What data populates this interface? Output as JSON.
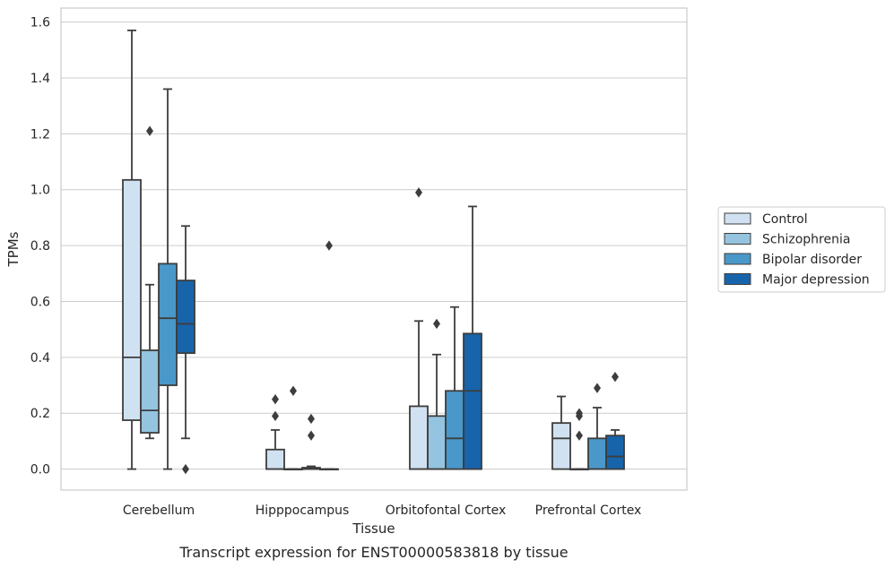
{
  "chart_data": {
    "type": "box",
    "title": "",
    "caption": "Transcript expression for ENST00000583818 by tissue",
    "xlabel": "Tissue",
    "ylabel": "TPMs",
    "ylim": [
      -0.075,
      1.65
    ],
    "yticks": [
      0.0,
      0.2,
      0.4,
      0.6,
      0.8,
      1.0,
      1.2,
      1.4,
      1.6
    ],
    "ytick_labels": [
      "0.0",
      "0.2",
      "0.4",
      "0.6",
      "0.8",
      "1.0",
      "1.2",
      "1.4",
      "1.6"
    ],
    "grid": "horizontal",
    "legend_position": "right",
    "categories": [
      "Cerebellum",
      "Hipppocampus",
      "Orbitofontal Cortex",
      "Prefrontal Cortex"
    ],
    "series": [
      {
        "name": "Control",
        "color": "#d0e1f2",
        "boxes": [
          {
            "whisker_low": 0.0,
            "q1": 0.175,
            "median": 0.4,
            "q3": 1.035,
            "whisker_high": 1.57,
            "outliers": []
          },
          {
            "whisker_low": 0.0,
            "q1": 0.0,
            "median": 0.0,
            "q3": 0.07,
            "whisker_high": 0.14,
            "outliers": [
              0.19,
              0.25
            ]
          },
          {
            "whisker_low": 0.0,
            "q1": 0.0,
            "median": 0.0,
            "q3": 0.225,
            "whisker_high": 0.53,
            "outliers": [
              0.99
            ]
          },
          {
            "whisker_low": 0.0,
            "q1": 0.0,
            "median": 0.11,
            "q3": 0.165,
            "whisker_high": 0.26,
            "outliers": []
          }
        ]
      },
      {
        "name": "Schizophrenia",
        "color": "#94c4df",
        "boxes": [
          {
            "whisker_low": 0.11,
            "q1": 0.13,
            "median": 0.21,
            "q3": 0.425,
            "whisker_high": 0.66,
            "outliers": [
              1.21
            ]
          },
          {
            "whisker_low": 0.0,
            "q1": 0.0,
            "median": 0.0,
            "q3": 0.0,
            "whisker_high": 0.0,
            "outliers": [
              0.28
            ]
          },
          {
            "whisker_low": 0.0,
            "q1": 0.0,
            "median": 0.0,
            "q3": 0.19,
            "whisker_high": 0.41,
            "outliers": [
              0.52
            ]
          },
          {
            "whisker_low": 0.0,
            "q1": 0.0,
            "median": 0.0,
            "q3": 0.0,
            "whisker_high": 0.0,
            "outliers": [
              0.12,
              0.19,
              0.2
            ]
          }
        ]
      },
      {
        "name": "Bipolar disorder",
        "color": "#4a98c9",
        "boxes": [
          {
            "whisker_low": 0.0,
            "q1": 0.3,
            "median": 0.54,
            "q3": 0.735,
            "whisker_high": 1.36,
            "outliers": []
          },
          {
            "whisker_low": 0.0,
            "q1": 0.0,
            "median": 0.0,
            "q3": 0.005,
            "whisker_high": 0.01,
            "outliers": [
              0.12,
              0.18
            ]
          },
          {
            "whisker_low": 0.0,
            "q1": 0.0,
            "median": 0.11,
            "q3": 0.28,
            "whisker_high": 0.58,
            "outliers": []
          },
          {
            "whisker_low": 0.0,
            "q1": 0.0,
            "median": 0.0,
            "q3": 0.11,
            "whisker_high": 0.22,
            "outliers": [
              0.29
            ]
          }
        ]
      },
      {
        "name": "Major depression",
        "color": "#1764ab",
        "boxes": [
          {
            "whisker_low": 0.11,
            "q1": 0.415,
            "median": 0.52,
            "q3": 0.675,
            "whisker_high": 0.87,
            "outliers": [
              0.0
            ]
          },
          {
            "whisker_low": 0.0,
            "q1": 0.0,
            "median": 0.0,
            "q3": 0.0,
            "whisker_high": 0.0,
            "outliers": [
              0.8
            ]
          },
          {
            "whisker_low": 0.0,
            "q1": 0.0,
            "median": 0.28,
            "q3": 0.485,
            "whisker_high": 0.94,
            "outliers": []
          },
          {
            "whisker_low": 0.0,
            "q1": 0.0,
            "median": 0.045,
            "q3": 0.12,
            "whisker_high": 0.14,
            "outliers": [
              0.33
            ]
          }
        ]
      }
    ]
  }
}
